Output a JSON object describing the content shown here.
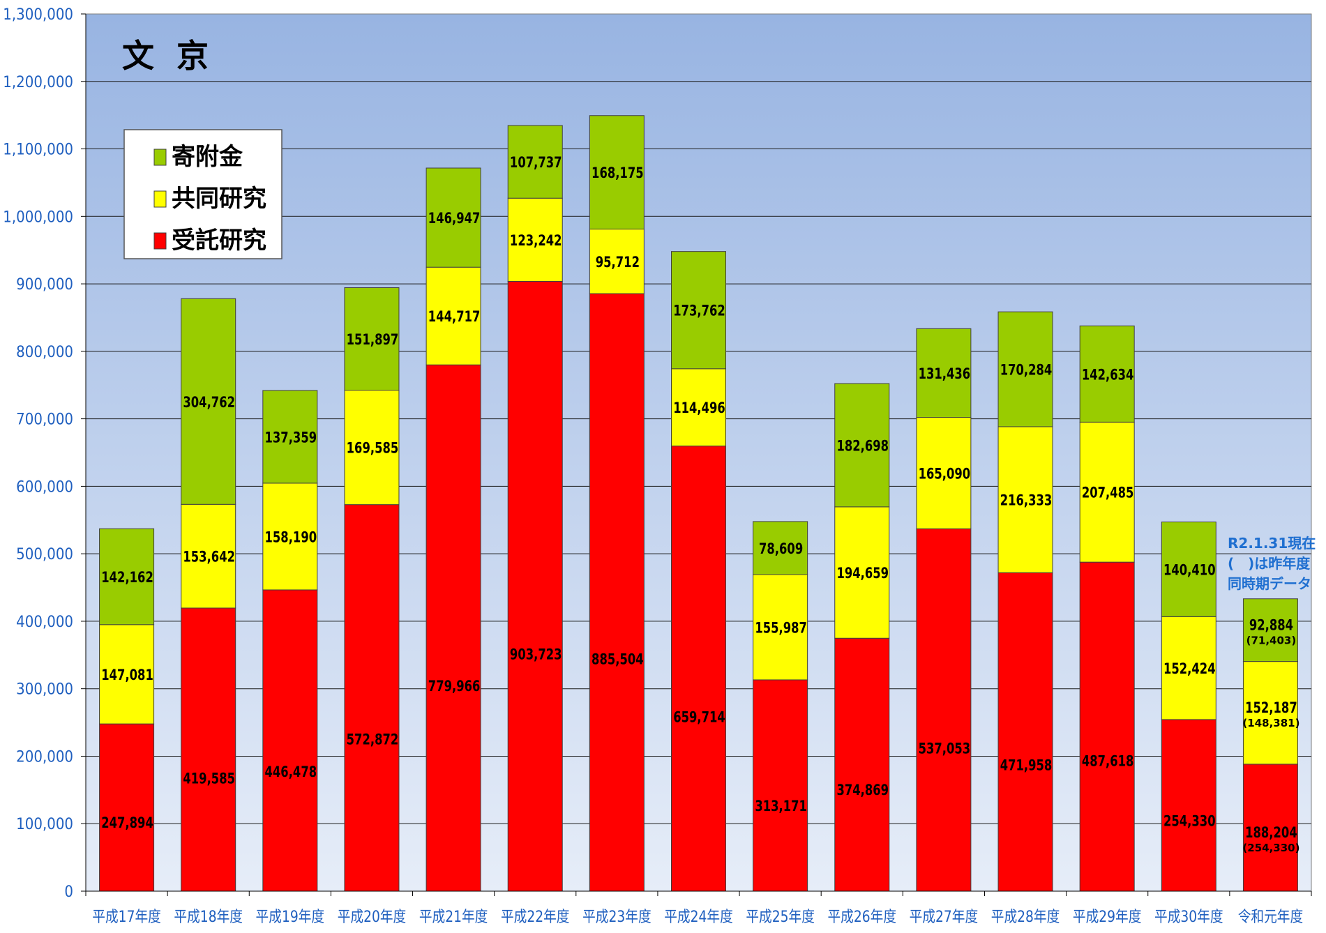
{
  "chart_data": {
    "type": "bar",
    "stacked": true,
    "title": "文 京",
    "categories": [
      "平成17年度",
      "平成18年度",
      "平成19年度",
      "平成20年度",
      "平成21年度",
      "平成22年度",
      "平成23年度",
      "平成24年度",
      "平成25年度",
      "平成26年度",
      "平成27年度",
      "平成28年度",
      "平成29年度",
      "平成30年度",
      "令和元年度"
    ],
    "series": [
      {
        "name": "受託研究",
        "color": "#ff0000",
        "values": [
          247894,
          419585,
          446478,
          572872,
          779966,
          903723,
          885504,
          659714,
          313171,
          374869,
          537053,
          471958,
          487618,
          254330,
          188204
        ]
      },
      {
        "name": "共同研究",
        "color": "#ffff00",
        "values": [
          147081,
          153642,
          158190,
          169585,
          144717,
          123242,
          95712,
          114496,
          155987,
          194659,
          165090,
          216333,
          207485,
          152424,
          152187
        ]
      },
      {
        "name": "寄附金",
        "color": "#99cc00",
        "values": [
          142162,
          304762,
          137359,
          151897,
          146947,
          107737,
          168175,
          173762,
          78609,
          182698,
          131436,
          170284,
          142634,
          140410,
          92884
        ]
      }
    ],
    "data_labels": [
      [
        "247,894",
        "419,585",
        "446,478",
        "572,872",
        "779,966",
        "903,723",
        "885,504",
        "659,714",
        "313,171",
        "374,869",
        "537,053",
        "471,958",
        "487,618",
        "254,330",
        "188,204"
      ],
      [
        "147,081",
        "153,642",
        "158,190",
        "169,585",
        "144,717",
        "123,242",
        "95,712",
        "114,496",
        "155,987",
        "194,659",
        "165,090",
        "216,333",
        "207,485",
        "152,424",
        "152,187"
      ],
      [
        "142,162",
        "304,762",
        "137,359",
        "151,897",
        "146,947",
        "107,737",
        "168,175",
        "173,762",
        "78,609",
        "182,698",
        "131,436",
        "170,284",
        "142,634",
        "140,410",
        "92,884"
      ]
    ],
    "previous_period": {
      "category": "令和元年度",
      "labels": {
        "受託研究": "(254,330)",
        "共同研究": "(148,381)",
        "寄附金": "(71,403)"
      }
    },
    "ylim": [
      0,
      1300000
    ],
    "yticks": [
      0,
      100000,
      200000,
      300000,
      400000,
      500000,
      600000,
      700000,
      800000,
      900000,
      1000000,
      1100000,
      1200000,
      1300000
    ],
    "ytick_labels": [
      "0",
      "100,000",
      "200,000",
      "300,000",
      "400,000",
      "500,000",
      "600,000",
      "700,000",
      "800,000",
      "900,000",
      "1,000,000",
      "1,100,000",
      "1,200,000",
      "1,300,000"
    ],
    "legend": {
      "position": "top-left",
      "order": [
        "寄附金",
        "共同研究",
        "受託研究"
      ]
    },
    "grid": true,
    "note_lines": [
      "R2.1.31現在",
      "(　)は昨年度",
      "同時期データ"
    ],
    "colors": {
      "plot_top": "#98b4e2",
      "plot_bottom": "#e6edf8",
      "axis_text": "#1f5fbf",
      "note_text": "#1f6fd0"
    }
  }
}
